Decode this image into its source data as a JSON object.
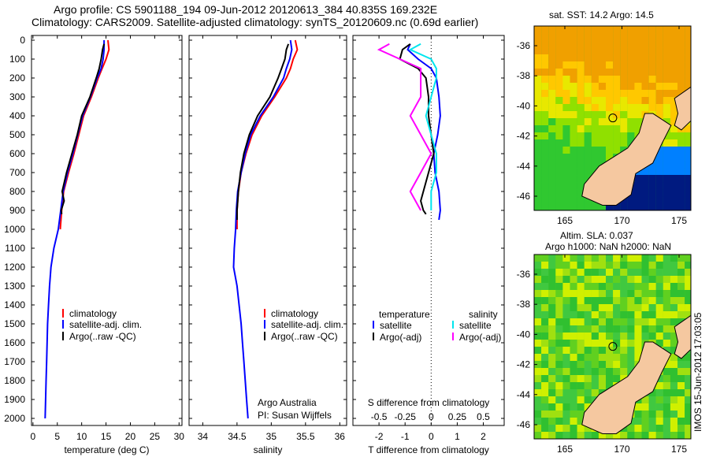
{
  "title": {
    "line1": "Argo profile: CS 5901188_194 09-Jun-2012 20120613_384 40.835S 169.232E",
    "line2": "Climatology: CARS2009. Satellite-adjusted climatology: synTS_20120609.nc (0.69d earlier)"
  },
  "colors": {
    "climatology": "#ff0000",
    "satellite": "#0000ff",
    "argo": "#000000",
    "sal_sat": "#00e5ee",
    "sal_argo": "#ff00ff"
  },
  "chart_data": [
    {
      "type": "line",
      "id": "temp",
      "xlabel": "temperature (deg C)",
      "ylabel": "",
      "xlim": [
        -0.3,
        30.6
      ],
      "ylim": [
        2000,
        0
      ],
      "xticks": [
        0,
        5,
        10,
        15,
        20,
        25,
        30
      ],
      "yticks": [
        0,
        100,
        200,
        300,
        400,
        500,
        600,
        700,
        800,
        900,
        1000,
        1100,
        1200,
        1300,
        1400,
        1500,
        1600,
        1700,
        1800,
        1900,
        2000
      ],
      "legend": [
        "climatology",
        "satellite-adj. clim.",
        "Argo(..raw -QC)"
      ],
      "series": [
        {
          "name": "climatology",
          "color": "#ff0000",
          "depth": [
            0,
            50,
            100,
            150,
            200,
            300,
            400,
            500,
            600,
            700,
            800,
            900,
            1000
          ],
          "values": [
            15.4,
            15.6,
            15.0,
            14.2,
            13.4,
            12.0,
            10.4,
            9.4,
            8.4,
            7.3,
            6.3,
            5.9,
            5.6
          ]
        },
        {
          "name": "satellite-adj. clim.",
          "color": "#0000ff",
          "depth": [
            0,
            50,
            100,
            150,
            200,
            300,
            400,
            500,
            600,
            700,
            800,
            900,
            1000,
            1100,
            1200,
            1300,
            1400,
            1500,
            1600,
            1700,
            1800,
            1900,
            2000
          ],
          "values": [
            14.6,
            14.6,
            14.4,
            14.0,
            13.2,
            11.8,
            10.2,
            9.2,
            8.2,
            7.1,
            6.2,
            5.7,
            5.2,
            4.3,
            3.7,
            3.4,
            3.2,
            3.0,
            2.9,
            2.8,
            2.7,
            2.6,
            2.5
          ]
        },
        {
          "name": "Argo(..raw -QC)",
          "color": "#000000",
          "depth": [
            20,
            50,
            100,
            150,
            200,
            300,
            400,
            500,
            600,
            700,
            800,
            850,
            900,
            920
          ],
          "values": [
            14.6,
            14.3,
            14.0,
            13.6,
            13.0,
            11.7,
            10.0,
            9.1,
            8.0,
            6.9,
            6.0,
            6.4,
            5.8,
            5.9
          ]
        }
      ]
    },
    {
      "type": "line",
      "id": "sal",
      "xlabel": "salinity",
      "xlim": [
        33.8,
        36.1
      ],
      "ylim": [
        2000,
        0
      ],
      "xticks": [
        34,
        34.5,
        35,
        35.5,
        36
      ],
      "legend": [
        "climatology",
        "satellite-adj. clim.",
        "Argo(..raw -QC)"
      ],
      "annotation": [
        "Argo Australia",
        "PI: Susan Wijffels"
      ],
      "series": [
        {
          "name": "climatology",
          "color": "#ff0000",
          "depth": [
            0,
            50,
            100,
            150,
            200,
            300,
            400,
            500,
            600,
            700,
            800,
            900,
            1000
          ],
          "values": [
            35.35,
            35.38,
            35.32,
            35.28,
            35.22,
            35.05,
            34.86,
            34.72,
            34.63,
            34.56,
            34.52,
            34.5,
            34.5
          ]
        },
        {
          "name": "satellite-adj. clim.",
          "color": "#0000ff",
          "depth": [
            0,
            50,
            100,
            150,
            200,
            300,
            400,
            500,
            600,
            700,
            800,
            900,
            1000,
            1100,
            1200,
            1300,
            1400,
            1500,
            1600,
            1700,
            1800,
            1900,
            2000
          ],
          "values": [
            35.28,
            35.3,
            35.27,
            35.22,
            35.18,
            35.03,
            34.84,
            34.7,
            34.62,
            34.56,
            34.51,
            34.49,
            34.48,
            34.46,
            34.45,
            34.5,
            34.53,
            34.56,
            34.58,
            34.6,
            34.62,
            34.64,
            34.66
          ]
        },
        {
          "name": "Argo(..raw -QC)",
          "color": "#000000",
          "depth": [
            20,
            50,
            100,
            150,
            200,
            300,
            400,
            500,
            600,
            700,
            800,
            900,
            950
          ],
          "values": [
            35.25,
            35.22,
            35.2,
            35.15,
            35.1,
            34.98,
            34.8,
            34.68,
            34.6,
            34.55,
            34.52,
            34.5,
            34.5
          ]
        }
      ]
    },
    {
      "type": "line",
      "id": "diff",
      "xlabel": "T difference from climatology",
      "x2label": "S difference from climatology",
      "xlim": [
        -3,
        2.8
      ],
      "ylim": [
        2000,
        0
      ],
      "xticks": [
        -2,
        -1,
        0,
        1,
        2
      ],
      "x2ticks": [
        "-0.5",
        "-0.25",
        "0",
        "0.25",
        "0.5"
      ],
      "legend_t": {
        "title": "temperature",
        "items": [
          "satellite",
          "Argo(-adj)"
        ]
      },
      "legend_s": {
        "title": "salinity",
        "items": [
          "satellite",
          "Argo(-adj)"
        ]
      },
      "series": [
        {
          "name": "T satellite",
          "color": "#0000ff",
          "depth": [
            20,
            50,
            100,
            150,
            200,
            300,
            400,
            500,
            600,
            700,
            800,
            900,
            950
          ],
          "values": [
            -0.8,
            -0.9,
            -0.5,
            0,
            0.2,
            0.3,
            0.35,
            0.25,
            0.1,
            0.15,
            0.3,
            0.35,
            0.3
          ]
        },
        {
          "name": "T Argo(-adj)",
          "color": "#000000",
          "depth": [
            20,
            50,
            100,
            150,
            200,
            300,
            400,
            500,
            600,
            700,
            800,
            850,
            900,
            920
          ],
          "values": [
            -0.8,
            -1.1,
            -1.2,
            -0.5,
            -0.2,
            -0.1,
            -0.1,
            0,
            0.1,
            -0.1,
            -0.3,
            -0.4,
            -0.3,
            -0.2
          ]
        },
        {
          "name": "S satellite",
          "color": "#00e5ee",
          "depth": [
            20,
            50,
            100,
            150,
            200,
            300,
            400,
            500,
            600,
            700,
            800,
            900
          ],
          "values": [
            -0.1,
            -0.2,
            0,
            0.05,
            0.05,
            0,
            -0.05,
            0,
            0.05,
            0.05,
            0,
            0
          ]
        },
        {
          "name": "S Argo(-adj)",
          "color": "#ff00ff",
          "depth": [
            20,
            50,
            100,
            150,
            200,
            300,
            400,
            500,
            600,
            700,
            800,
            900
          ],
          "values": [
            -0.4,
            -0.5,
            -0.3,
            -0.1,
            -0.1,
            -0.1,
            -0.2,
            -0.1,
            0,
            -0.1,
            -0.2,
            -0.1
          ]
        }
      ]
    }
  ],
  "maps": {
    "sst": {
      "title": "sat. SST: 14.2 Argo: 14.5",
      "lon_ticks": [
        "165",
        "170",
        "175"
      ],
      "lat_ticks": [
        "-36",
        "-38",
        "-40",
        "-42",
        "-44",
        "-46"
      ]
    },
    "sla": {
      "title1": "Altim. SLA: 0.037",
      "title2": "Argo h1000: NaN h2000: NaN",
      "lon_ticks": [
        "165",
        "170",
        "175"
      ],
      "lat_ticks": [
        "-36",
        "-38",
        "-40",
        "-42",
        "-44",
        "-46"
      ]
    }
  },
  "timestamp": "IMOS 15-Jun-2012 17:03:05"
}
